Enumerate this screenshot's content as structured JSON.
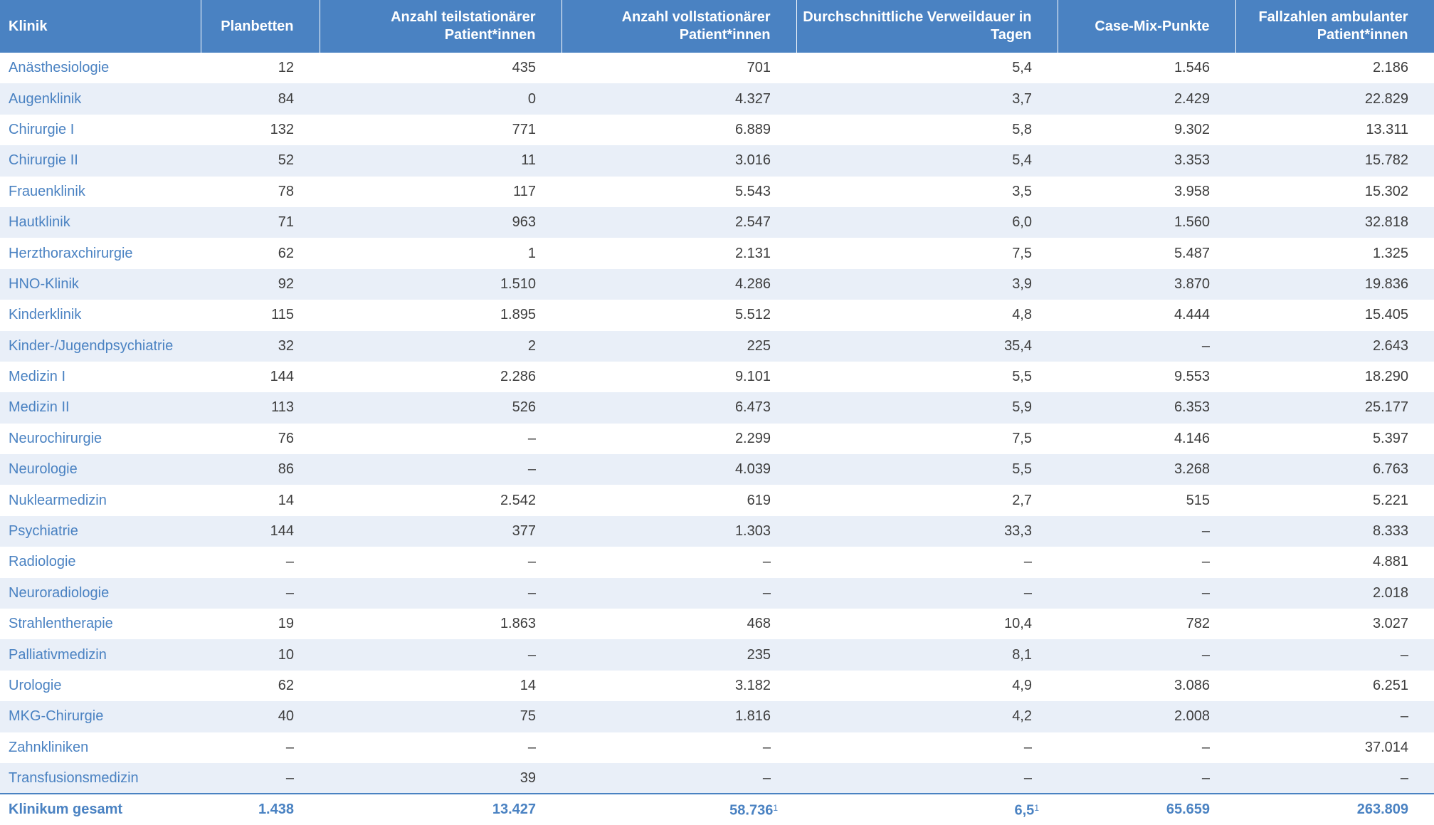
{
  "headers": {
    "klinik": "Klinik",
    "planbetten": "Planbetten",
    "teil": "Anzahl teilstationärer Patient*innen",
    "voll": "Anzahl vollstationärer Patient*innen",
    "verweil": "Durchschnittliche Verweildauer in Tagen",
    "casemix": "Case-Mix-Punkte",
    "ambulant": "Fallzahlen ambulanter Patient*innen"
  },
  "rows": [
    [
      "Anästhesiologie",
      "12",
      "435",
      "701",
      "5,4",
      "1.546",
      "2.186"
    ],
    [
      "Augenklinik",
      "84",
      "0",
      "4.327",
      "3,7",
      "2.429",
      "22.829"
    ],
    [
      "Chirurgie I",
      "132",
      "771",
      "6.889",
      "5,8",
      "9.302",
      "13.311"
    ],
    [
      "Chirurgie II",
      "52",
      "11",
      "3.016",
      "5,4",
      "3.353",
      "15.782"
    ],
    [
      "Frauenklinik",
      "78",
      "117",
      "5.543",
      "3,5",
      "3.958",
      "15.302"
    ],
    [
      "Hautklinik",
      "71",
      "963",
      "2.547",
      "6,0",
      "1.560",
      "32.818"
    ],
    [
      "Herzthoraxchirurgie",
      "62",
      "1",
      "2.131",
      "7,5",
      "5.487",
      "1.325"
    ],
    [
      "HNO-Klinik",
      "92",
      "1.510",
      "4.286",
      "3,9",
      "3.870",
      "19.836"
    ],
    [
      "Kinderklinik",
      "115",
      "1.895",
      "5.512",
      "4,8",
      "4.444",
      "15.405"
    ],
    [
      "Kinder-/Jugendpsychiatrie",
      "32",
      "2",
      "225",
      "35,4",
      "–",
      "2.643"
    ],
    [
      "Medizin I",
      "144",
      "2.286",
      "9.101",
      "5,5",
      "9.553",
      "18.290"
    ],
    [
      "Medizin II",
      "113",
      "526",
      "6.473",
      "5,9",
      "6.353",
      "25.177"
    ],
    [
      "Neurochirurgie",
      "76",
      "–",
      "2.299",
      "7,5",
      "4.146",
      "5.397"
    ],
    [
      "Neurologie",
      "86",
      "–",
      "4.039",
      "5,5",
      "3.268",
      "6.763"
    ],
    [
      "Nuklearmedizin",
      "14",
      "2.542",
      "619",
      "2,7",
      "515",
      "5.221"
    ],
    [
      "Psychiatrie",
      "144",
      "377",
      "1.303",
      "33,3",
      "–",
      "8.333"
    ],
    [
      "Radiologie",
      "–",
      "–",
      "–",
      "–",
      "–",
      "4.881"
    ],
    [
      "Neuroradiologie",
      "–",
      "–",
      "–",
      "–",
      "–",
      "2.018"
    ],
    [
      "Strahlentherapie",
      "19",
      "1.863",
      "468",
      "10,4",
      "782",
      "3.027"
    ],
    [
      "Palliativmedizin",
      "10",
      "–",
      "235",
      "8,1",
      "–",
      "–"
    ],
    [
      "Urologie",
      "62",
      "14",
      "3.182",
      "4,9",
      "3.086",
      "6.251"
    ],
    [
      "MKG-Chirurgie",
      "40",
      "75",
      "1.816",
      "4,2",
      "2.008",
      "–"
    ],
    [
      "Zahnkliniken",
      "–",
      "–",
      "–",
      "–",
      "–",
      "37.014"
    ],
    [
      "Transfusionsmedizin",
      "–",
      "39",
      "–",
      "–",
      "–",
      "–"
    ]
  ],
  "total": {
    "label": "Klinikum gesamt",
    "planbetten": "1.438",
    "teil": "13.427",
    "voll": "58.736",
    "voll_note": "1",
    "verweil": "6,5",
    "verweil_note": "1",
    "casemix": "65.659",
    "ambulant": "263.809"
  }
}
